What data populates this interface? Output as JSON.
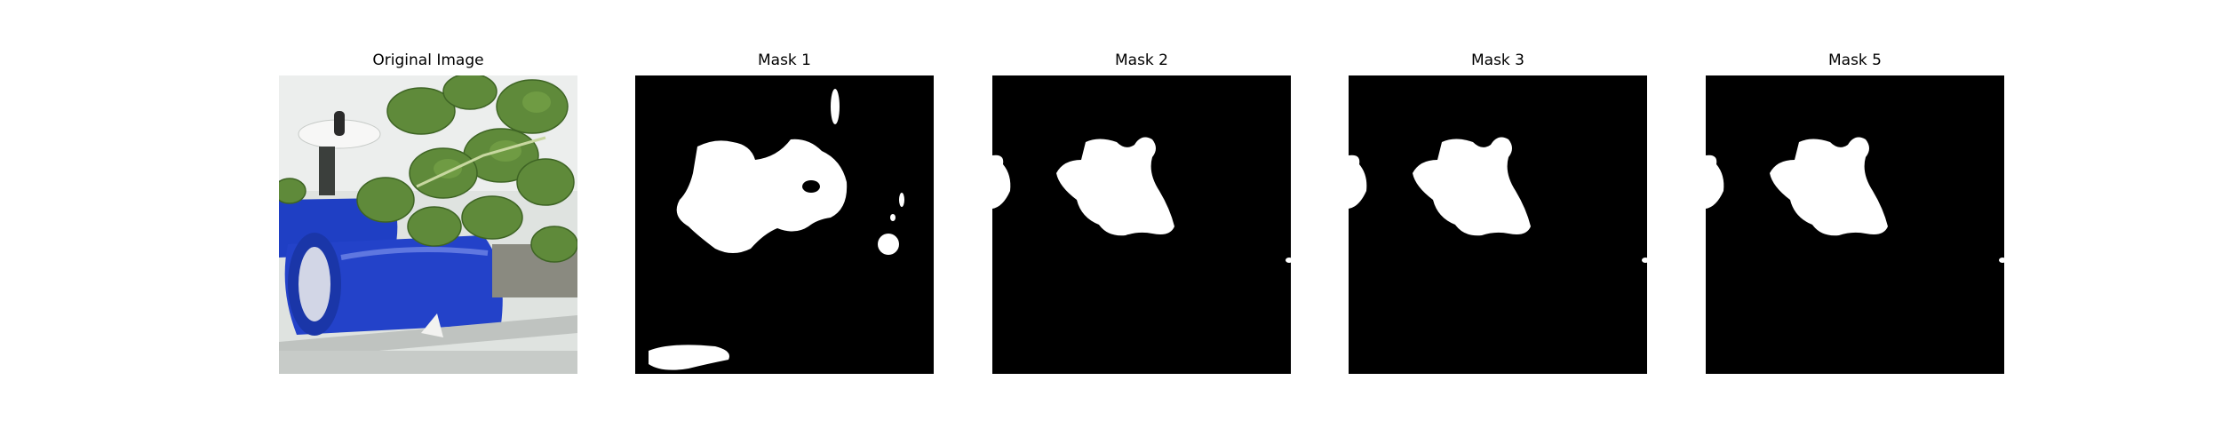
{
  "figure": {
    "panels": [
      {
        "title": "Original Image",
        "kind": "photo"
      },
      {
        "title": "Mask 1",
        "kind": "mask"
      },
      {
        "title": "Mask 2",
        "kind": "mask"
      },
      {
        "title": "Mask 3",
        "kind": "mask"
      },
      {
        "title": "Mask 5",
        "kind": "mask"
      }
    ]
  },
  "colors": {
    "mask_background": "#000000",
    "mask_foreground": "#ffffff",
    "barrel_blue": "#1f3fc4",
    "leaf_green": "#5f8a3a",
    "wall_white": "#e8ebe9"
  }
}
